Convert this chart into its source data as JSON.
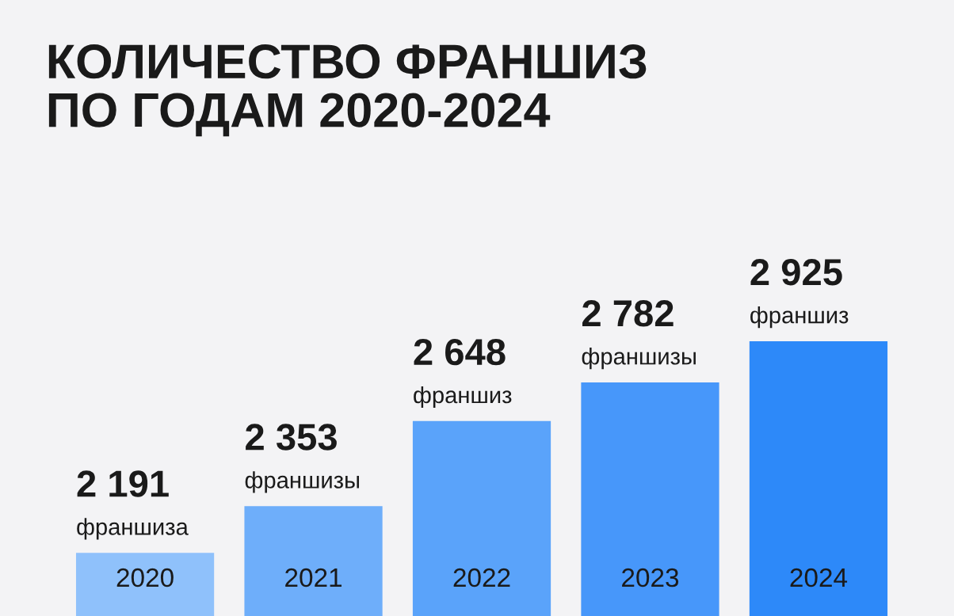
{
  "chart_data": {
    "type": "bar",
    "title": "КОЛИЧЕСТВО ФРАНШИЗ\nПО ГОДАМ 2020-2024",
    "categories": [
      "2020",
      "2021",
      "2022",
      "2023",
      "2024"
    ],
    "values": [
      2191,
      2353,
      2648,
      2782,
      2925
    ],
    "colors": [
      "#8fc1fb",
      "#6eaefa",
      "#5aa3fa",
      "#4797fa",
      "#2d89f9"
    ],
    "value_labels": [
      "2 191\nфраншиза",
      "2 353\nфраншизы",
      "2 648\nфраншиз",
      "2 782\nфраншизы",
      "2 925\nфраншиз"
    ],
    "grid": false,
    "legend": false
  }
}
